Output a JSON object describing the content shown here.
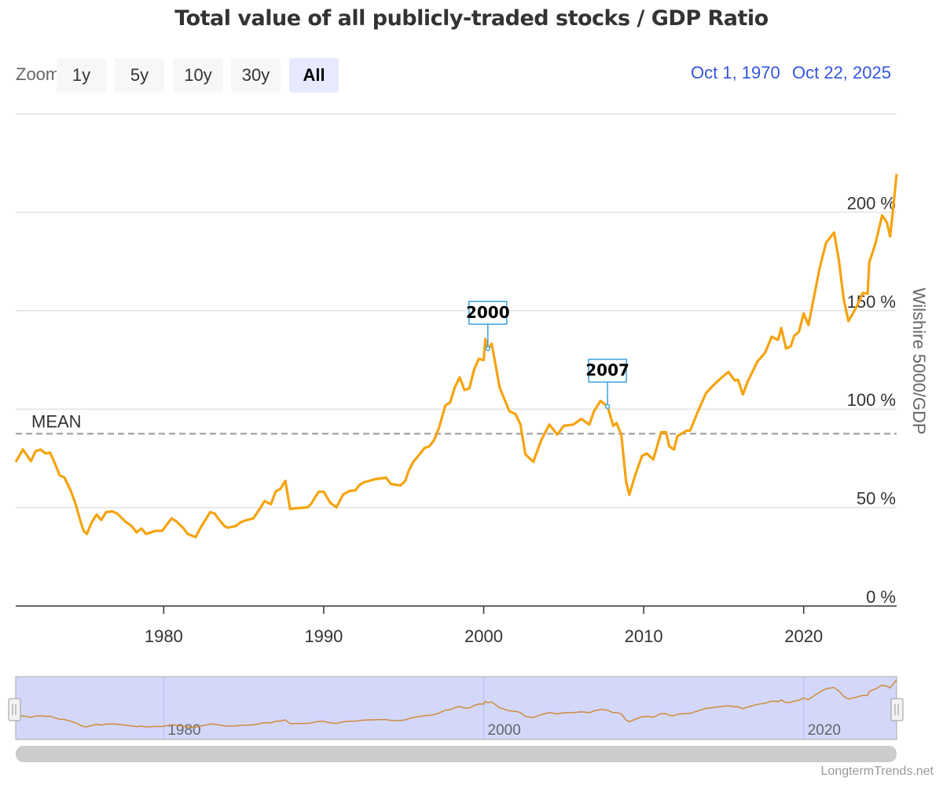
{
  "chart_data": {
    "type": "line",
    "title": "Total value of all publicly-traded stocks / GDP Ratio",
    "ylabel": "Wilshire 5000/GDP",
    "xlabel": "",
    "xlim": [
      1970.75,
      2025.81
    ],
    "ylim": [
      0,
      250
    ],
    "x_ticks": [
      1980,
      1990,
      2000,
      2010,
      2020
    ],
    "y_ticks": [
      0,
      50,
      100,
      150,
      200
    ],
    "y_tick_labels": [
      "0 %",
      "50 %",
      "100 %",
      "150 %",
      "200 %"
    ],
    "grid": true,
    "line_color": "#f5a30f",
    "mean": {
      "label": "MEAN",
      "value": 87.5
    },
    "annotations": [
      {
        "label": "2000",
        "x": 2000.26,
        "y": 130.8
      },
      {
        "label": "2007",
        "x": 2007.74,
        "y": 101.4
      }
    ],
    "points": [
      [
        1970.75,
        73.2
      ],
      [
        1971.2,
        79.5
      ],
      [
        1971.7,
        73.6
      ],
      [
        1972.0,
        78.7
      ],
      [
        1972.3,
        79.5
      ],
      [
        1972.6,
        77.5
      ],
      [
        1972.9,
        77.9
      ],
      [
        1973.2,
        72.4
      ],
      [
        1973.5,
        66.4
      ],
      [
        1973.8,
        65.2
      ],
      [
        1974.2,
        58.4
      ],
      [
        1974.5,
        51.7
      ],
      [
        1974.8,
        42.9
      ],
      [
        1975.0,
        38.2
      ],
      [
        1975.2,
        36.6
      ],
      [
        1975.5,
        42.5
      ],
      [
        1975.8,
        46.5
      ],
      [
        1976.1,
        43.7
      ],
      [
        1976.4,
        47.7
      ],
      [
        1976.8,
        48.1
      ],
      [
        1977.1,
        46.9
      ],
      [
        1977.4,
        44.5
      ],
      [
        1977.6,
        42.9
      ],
      [
        1978.0,
        40.6
      ],
      [
        1978.3,
        37.4
      ],
      [
        1978.6,
        39.4
      ],
      [
        1978.9,
        36.6
      ],
      [
        1979.5,
        38.2
      ],
      [
        1979.9,
        38.2
      ],
      [
        1980.2,
        41.4
      ],
      [
        1980.5,
        44.5
      ],
      [
        1980.8,
        42.9
      ],
      [
        1981.2,
        39.8
      ],
      [
        1981.5,
        36.6
      ],
      [
        1982.0,
        35.0
      ],
      [
        1982.3,
        39.8
      ],
      [
        1982.6,
        43.7
      ],
      [
        1982.9,
        47.7
      ],
      [
        1983.2,
        46.9
      ],
      [
        1983.4,
        44.5
      ],
      [
        1983.8,
        40.6
      ],
      [
        1984.0,
        39.8
      ],
      [
        1984.5,
        40.6
      ],
      [
        1984.8,
        42.5
      ],
      [
        1985.2,
        43.7
      ],
      [
        1985.6,
        44.5
      ],
      [
        1986.0,
        49.3
      ],
      [
        1986.3,
        53.3
      ],
      [
        1986.7,
        51.7
      ],
      [
        1987.0,
        58.1
      ],
      [
        1987.3,
        59.6
      ],
      [
        1987.6,
        63.6
      ],
      [
        1987.9,
        49.3
      ],
      [
        1988.3,
        49.7
      ],
      [
        1989.0,
        50.1
      ],
      [
        1989.2,
        51.7
      ],
      [
        1989.5,
        55.7
      ],
      [
        1989.7,
        58.1
      ],
      [
        1990.0,
        58.1
      ],
      [
        1990.4,
        52.5
      ],
      [
        1990.8,
        50.1
      ],
      [
        1991.2,
        56.5
      ],
      [
        1991.6,
        58.4
      ],
      [
        1992.0,
        58.8
      ],
      [
        1992.2,
        61.2
      ],
      [
        1992.5,
        62.8
      ],
      [
        1993.2,
        64.4
      ],
      [
        1993.9,
        65.2
      ],
      [
        1994.2,
        62.0
      ],
      [
        1994.8,
        61.2
      ],
      [
        1995.1,
        63.6
      ],
      [
        1995.3,
        68.4
      ],
      [
        1995.6,
        73.2
      ],
      [
        1996.0,
        77.1
      ],
      [
        1996.3,
        80.3
      ],
      [
        1996.6,
        81.1
      ],
      [
        1996.9,
        84.3
      ],
      [
        1997.2,
        90.3
      ],
      [
        1997.6,
        101.8
      ],
      [
        1997.9,
        103.4
      ],
      [
        1998.2,
        111.3
      ],
      [
        1998.5,
        116.1
      ],
      [
        1998.8,
        109.7
      ],
      [
        1999.1,
        110.5
      ],
      [
        1999.4,
        120.1
      ],
      [
        1999.7,
        125.6
      ],
      [
        2000.0,
        124.9
      ],
      [
        2000.1,
        135.6
      ],
      [
        2000.26,
        130.8
      ],
      [
        2000.5,
        133.2
      ],
      [
        2001.0,
        110.9
      ],
      [
        2001.6,
        99.0
      ],
      [
        2002.0,
        97.4
      ],
      [
        2002.3,
        92.2
      ],
      [
        2002.6,
        77.1
      ],
      [
        2003.1,
        73.2
      ],
      [
        2003.6,
        84.3
      ],
      [
        2004.1,
        92.2
      ],
      [
        2004.6,
        87.1
      ],
      [
        2005.0,
        91.5
      ],
      [
        2005.6,
        92.2
      ],
      [
        2006.1,
        95.0
      ],
      [
        2006.6,
        92.2
      ],
      [
        2006.9,
        99.0
      ],
      [
        2007.3,
        104.2
      ],
      [
        2007.74,
        101.4
      ],
      [
        2008.1,
        91.5
      ],
      [
        2008.3,
        93.0
      ],
      [
        2008.6,
        87.1
      ],
      [
        2008.9,
        63.2
      ],
      [
        2009.1,
        56.5
      ],
      [
        2009.5,
        67.2
      ],
      [
        2009.9,
        76.3
      ],
      [
        2010.2,
        77.5
      ],
      [
        2010.6,
        74.4
      ],
      [
        2011.1,
        88.3
      ],
      [
        2011.4,
        88.3
      ],
      [
        2011.6,
        81.1
      ],
      [
        2011.9,
        79.5
      ],
      [
        2012.1,
        86.3
      ],
      [
        2012.7,
        89.1
      ],
      [
        2012.9,
        89.1
      ],
      [
        2013.4,
        99.0
      ],
      [
        2013.9,
        108.2
      ],
      [
        2014.5,
        113.3
      ],
      [
        2015.0,
        116.9
      ],
      [
        2015.3,
        118.9
      ],
      [
        2015.7,
        114.5
      ],
      [
        2015.9,
        114.9
      ],
      [
        2016.2,
        107.4
      ],
      [
        2016.5,
        114.1
      ],
      [
        2016.7,
        117.3
      ],
      [
        2017.1,
        124.1
      ],
      [
        2017.6,
        128.8
      ],
      [
        2018.0,
        136.8
      ],
      [
        2018.4,
        135.2
      ],
      [
        2018.6,
        141.2
      ],
      [
        2018.9,
        130.8
      ],
      [
        2019.2,
        132.0
      ],
      [
        2019.4,
        137.2
      ],
      [
        2019.7,
        139.2
      ],
      [
        2020.0,
        148.7
      ],
      [
        2020.3,
        142.7
      ],
      [
        2021.0,
        171.8
      ],
      [
        2021.4,
        184.5
      ],
      [
        2021.9,
        189.7
      ],
      [
        2022.2,
        175.7
      ],
      [
        2022.5,
        155.9
      ],
      [
        2022.8,
        144.7
      ],
      [
        2023.3,
        151.9
      ],
      [
        2023.7,
        159.0
      ],
      [
        2024.0,
        158.6
      ],
      [
        2024.1,
        174.6
      ],
      [
        2024.5,
        184.5
      ],
      [
        2024.9,
        198.4
      ],
      [
        2025.2,
        194.8
      ],
      [
        2025.4,
        187.7
      ],
      [
        2025.6,
        202.4
      ],
      [
        2025.81,
        219.5
      ]
    ]
  },
  "toolbar": {
    "zoom_label": "Zoom",
    "buttons": [
      {
        "label": "1y",
        "selected": false
      },
      {
        "label": "5y",
        "selected": false
      },
      {
        "label": "10y",
        "selected": false
      },
      {
        "label": "30y",
        "selected": false
      },
      {
        "label": "All",
        "selected": true
      }
    ],
    "range_from": "Oct 1, 1970",
    "range_to": "Oct 22, 2025"
  },
  "navigator": {
    "x_labels": [
      "1980",
      "2000",
      "2020"
    ],
    "fill_color": "#d3d8fb"
  },
  "credits": "LongtermTrends.net"
}
